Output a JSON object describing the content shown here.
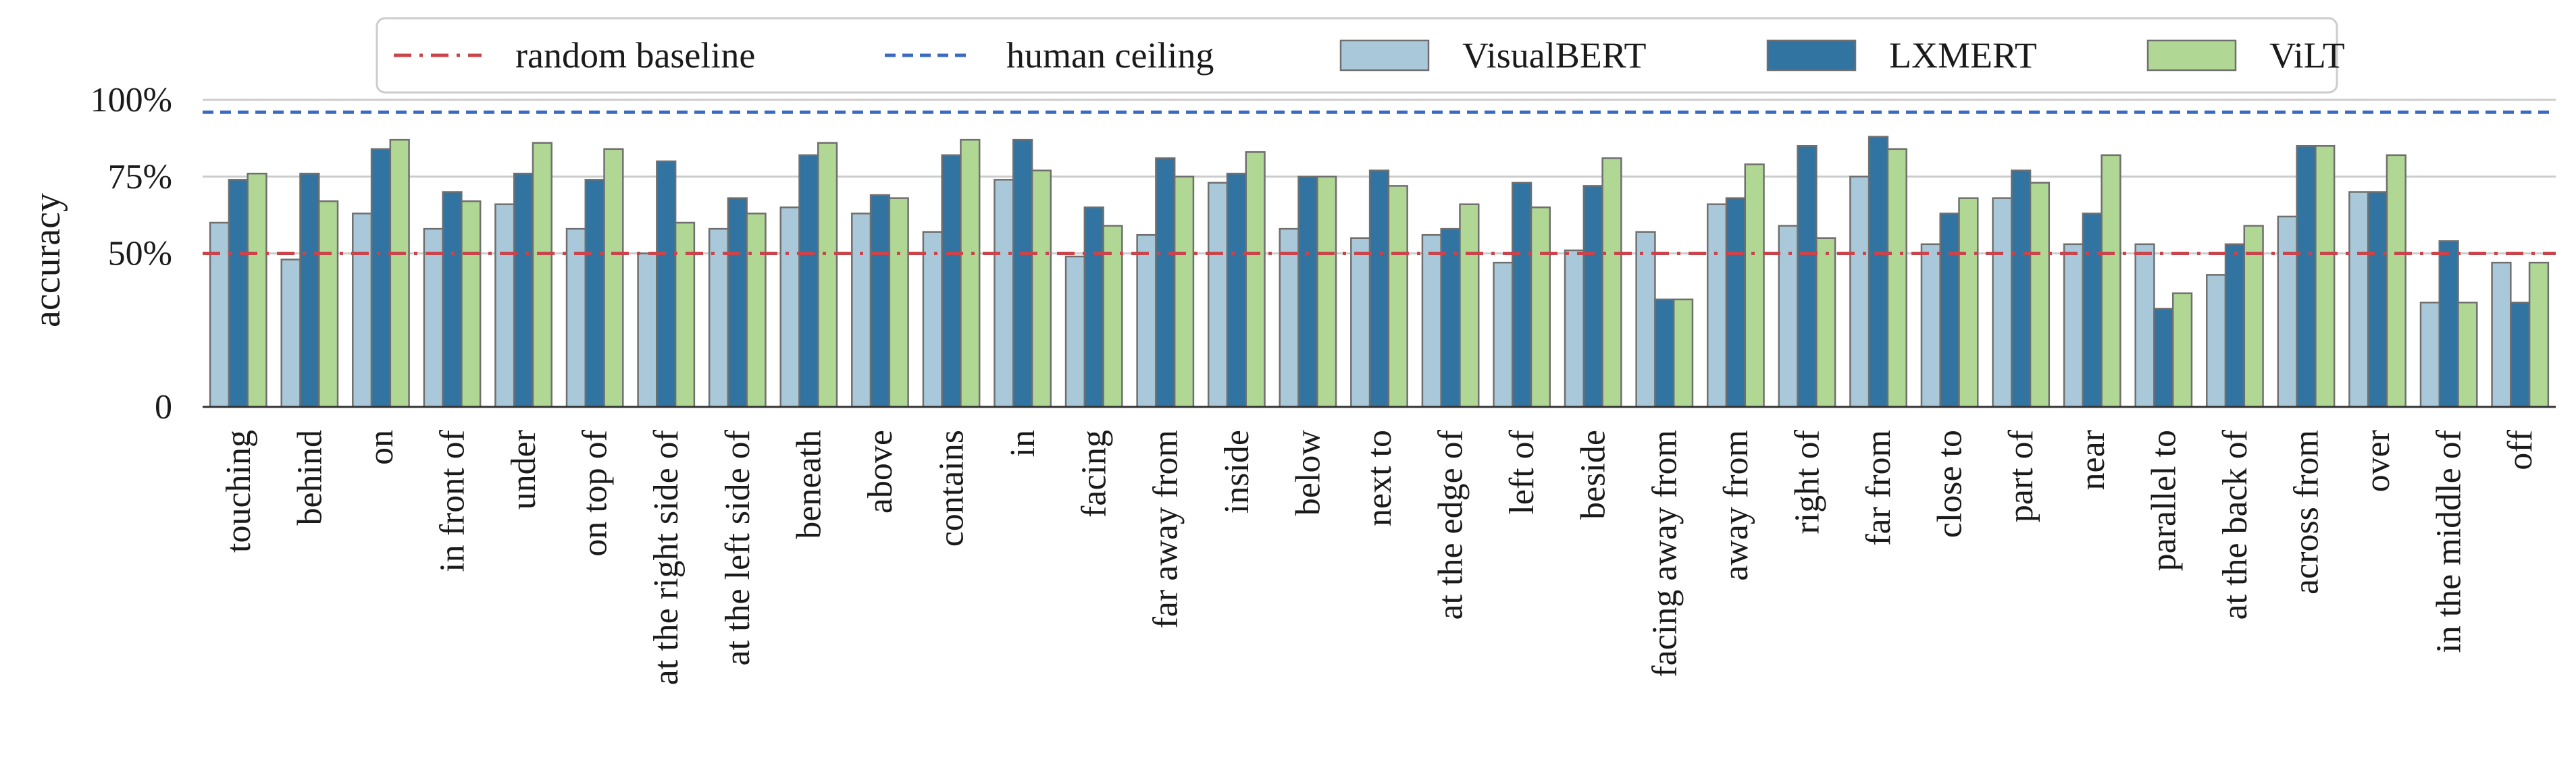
{
  "chart_data": {
    "type": "bar",
    "ylabel": "accuracy",
    "ylim": [
      0,
      100
    ],
    "yticks": [
      {
        "value": 0,
        "label": "0"
      },
      {
        "value": 50,
        "label": "50%"
      },
      {
        "value": 75,
        "label": "75%"
      },
      {
        "value": 100,
        "label": "100%"
      }
    ],
    "grid": true,
    "legend_position": "top-center",
    "categories": [
      "touching",
      "behind",
      "on",
      "in front of",
      "under",
      "on top of",
      "at the right side of",
      "at the left side of",
      "beneath",
      "above",
      "contains",
      "in",
      "facing",
      "far away from",
      "inside",
      "below",
      "next to",
      "at the edge of",
      "left of",
      "beside",
      "facing away from",
      "away from",
      "right of",
      "far from",
      "close to",
      "part of",
      "near",
      "parallel to",
      "at the back of",
      "across from",
      "over",
      "in the middle of",
      "off"
    ],
    "series": [
      {
        "name": "VisualBERT",
        "color": "#a9c9da",
        "values": [
          60,
          48,
          63,
          58,
          66,
          58,
          50,
          58,
          65,
          63,
          57,
          74,
          49,
          56,
          73,
          58,
          55,
          56,
          47,
          51,
          57,
          66,
          59,
          75,
          53,
          68,
          53,
          53,
          43,
          62,
          70,
          34,
          47
        ]
      },
      {
        "name": "LXMERT",
        "color": "#3274a1",
        "values": [
          74,
          76,
          84,
          70,
          76,
          74,
          80,
          68,
          82,
          69,
          82,
          87,
          65,
          81,
          76,
          75,
          77,
          58,
          73,
          72,
          35,
          68,
          85,
          88,
          63,
          77,
          63,
          32,
          53,
          85,
          70,
          54,
          34
        ]
      },
      {
        "name": "ViLT",
        "color": "#b1d794",
        "values": [
          76,
          67,
          87,
          67,
          86,
          84,
          60,
          63,
          86,
          68,
          87,
          77,
          59,
          75,
          83,
          75,
          72,
          66,
          65,
          81,
          35,
          79,
          55,
          84,
          68,
          73,
          82,
          37,
          59,
          85,
          82,
          34,
          47
        ]
      }
    ],
    "reference_lines": [
      {
        "name": "random baseline",
        "value": 50,
        "color": "#c9454b",
        "style": "dashdot"
      },
      {
        "name": "human ceiling",
        "value": 96,
        "color": "#3a6bc4",
        "style": "dashed"
      }
    ],
    "legend": [
      "random baseline",
      "human ceiling",
      "VisualBERT",
      "LXMERT",
      "ViLT"
    ]
  }
}
